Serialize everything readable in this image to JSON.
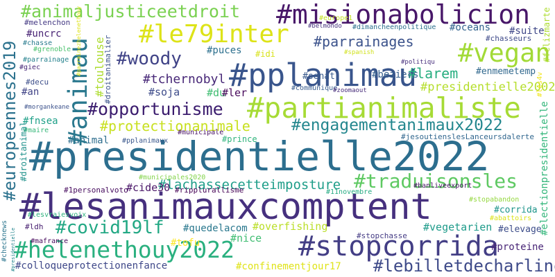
{
  "words": [
    {
      "t": "#presidentielle2022",
      "c": "#2c6e8e"
    },
    {
      "t": "#lesanimauxcomptent",
      "c": "#46307e"
    },
    {
      "t": "#stopcorrida",
      "c": "#433e85"
    },
    {
      "t": "#helenethouy2022",
      "c": "#2ab07f"
    },
    {
      "t": "#pplanimau",
      "c": "#39558c"
    },
    {
      "t": "#partianimaliste",
      "c": "#a6db35"
    },
    {
      "t": "#misionabolicion",
      "c": "#481769"
    },
    {
      "t": "#le79inter",
      "c": "#dde318"
    },
    {
      "t": "#vegan",
      "c": "#a2da37"
    },
    {
      "t": "#animaljusticeetdroit",
      "c": "#7ad151"
    },
    {
      "t": "#opportunisme",
      "c": "#3b1c6e"
    },
    {
      "t": "#engagementanimaux2022",
      "c": "#24878e"
    },
    {
      "t": "#traduisonsles",
      "c": "#5ec962"
    },
    {
      "t": "#lebilletdecharline",
      "c": "#3e4a89"
    },
    {
      "t": "#covid19lf",
      "c": "#22a884"
    },
    {
      "t": "#parrainages",
      "c": "#3b528b"
    },
    {
      "t": "#woody",
      "c": "#404387"
    },
    {
      "t": "#protectionanimale",
      "c": "#c8e020"
    },
    {
      "t": "#lachassecetteimposture",
      "c": "#1f9e89"
    },
    {
      "t": "#larem",
      "c": "#28ae80"
    },
    {
      "t": "#tchernobyl",
      "c": "#482878"
    },
    {
      "t": "#presidentielle2002",
      "c": "#b5de2b"
    },
    {
      "t": "#enmemetemp",
      "c": "#31688e"
    },
    {
      "t": "#beziers",
      "c": "#355f8d"
    },
    {
      "t": "#senat",
      "c": "#38598c"
    },
    {
      "t": "#puces",
      "c": "#2d708e"
    },
    {
      "t": "#oceans",
      "c": "#33638d"
    },
    {
      "t": "#suite",
      "c": "#3f4788"
    },
    {
      "t": "#chasseurs",
      "c": "#3e4989"
    },
    {
      "t": "#dimancheenpolitique",
      "c": "#2d718e"
    },
    {
      "t": "#belmondo",
      "c": "#46327e"
    },
    {
      "t": "#europe1",
      "c": "#c2df23"
    },
    {
      "t": "#melenchon",
      "c": "#443983"
    },
    {
      "t": "#uncrc",
      "c": "#482374"
    },
    {
      "t": "#chasse",
      "c": "#297b8e"
    },
    {
      "t": "#grenoble",
      "c": "#4ac16d"
    },
    {
      "t": "#parrainage",
      "c": "#26828e"
    },
    {
      "t": "#giec",
      "c": "#482979"
    },
    {
      "t": "#decu",
      "c": "#3d4e8a"
    },
    {
      "t": "#an",
      "c": "#414487"
    },
    {
      "t": "#morgankeane",
      "c": "#3b518b"
    },
    {
      "t": "#fnsea",
      "c": "#1fa088"
    },
    {
      "t": "#maire",
      "c": "#35b779"
    },
    {
      "t": "#idi",
      "c": "#d8e219"
    },
    {
      "t": "#soja",
      "c": "#3e4c8a"
    },
    {
      "t": "#du",
      "c": "#40bd72"
    },
    {
      "t": "#ler",
      "c": "#46075a"
    },
    {
      "t": "#communique",
      "c": "#375b8d"
    },
    {
      "t": "#zoomaout",
      "c": "#472c7a"
    },
    {
      "t": "#politiqu",
      "c": "#472f7d"
    },
    {
      "t": "#spanish",
      "c": "#d0e11c"
    },
    {
      "t": "#municipale",
      "c": "#471063"
    },
    {
      "t": "#pplanimaux",
      "c": "#39568c"
    },
    {
      "t": "#prince",
      "c": "#2fb47c"
    },
    {
      "t": "#jesoutienslesLanceursdalerte",
      "c": "#31678e"
    },
    {
      "t": "#animal",
      "c": "#2e6e8e"
    },
    {
      "t": "#municipales2020",
      "c": "#84d44b"
    },
    {
      "t": "#1personalvoto",
      "c": "#460b5e"
    },
    {
      "t": "#cide30",
      "c": "#481467"
    },
    {
      "t": "#ripplurallisme",
      "c": "#440154"
    },
    {
      "t": "#11novembre",
      "c": "#25ab82"
    },
    {
      "t": "#banliveexport",
      "c": "#471365"
    },
    {
      "t": "#stopabandon",
      "c": "#95d840"
    },
    {
      "t": "#corrida",
      "c": "#1f958b"
    },
    {
      "t": "#abattoirs",
      "c": "#dce319"
    },
    {
      "t": "#ldh",
      "c": "#482071"
    },
    {
      "t": "#quedelacom",
      "c": "#2a788e"
    },
    {
      "t": "#overfishing",
      "c": "#bade28"
    },
    {
      "t": "#vegetarien",
      "c": "#1e9b8a"
    },
    {
      "t": "#elevage",
      "c": "#3d4d8a"
    },
    {
      "t": "#nice",
      "c": "#40bd72"
    },
    {
      "t": "#stopchasse",
      "c": "#443b84"
    },
    {
      "t": "#mafrance",
      "c": "#46085c"
    },
    {
      "t": "#tofu",
      "c": "#fde725"
    },
    {
      "t": "#proteine",
      "c": "#482576"
    },
    {
      "t": "#colloqueprotectionenfance",
      "c": "#3f4889"
    },
    {
      "t": "#confinementjour17",
      "c": "#dfe318"
    },
    {
      "t": "#lesvraiesvoix",
      "c": "#2db27d"
    },
    {
      "t": "#europeennes2019",
      "c": "#2c728e"
    },
    {
      "t": "#animau",
      "c": "#2a788e"
    },
    {
      "t": "#toulouse",
      "c": "#addc30"
    },
    {
      "t": "#droitanimalier",
      "c": "#3b528b"
    },
    {
      "t": "#droitanimal",
      "c": "#20928c"
    },
    {
      "t": "#checknews",
      "c": "#2b758e"
    },
    {
      "t": "#felizmarte",
      "c": "#addc30"
    },
    {
      "t": "#electionpresidentielle",
      "c": "#32b67a"
    },
    {
      "t": "#les4v",
      "c": "#f1e51d"
    },
    {
      "t": "#parrainezhelenethouy",
      "c": "#dfe318"
    },
    {
      "t": "#presidentielle",
      "c": "#24868e"
    }
  ]
}
